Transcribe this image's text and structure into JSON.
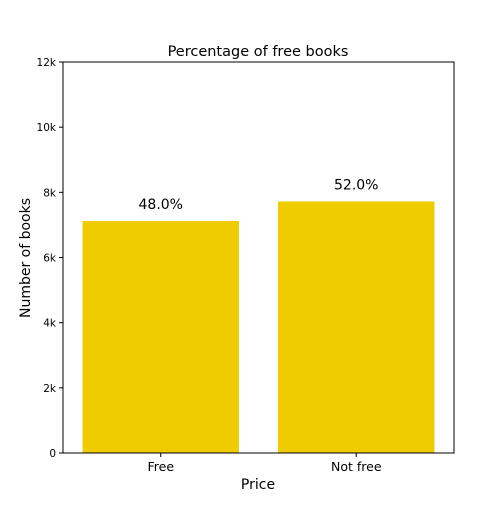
{
  "chart_data": {
    "type": "bar",
    "title": "Percentage of free books",
    "xlabel": "Price",
    "ylabel": "Number of books",
    "categories": [
      "Free",
      "Not free"
    ],
    "values": [
      7120,
      7720
    ],
    "data_labels": [
      "48.0%",
      "52.0%"
    ],
    "ylim": [
      0,
      12000
    ],
    "y_ticks": [
      0,
      2000,
      4000,
      6000,
      8000,
      10000,
      12000
    ],
    "y_tick_labels": [
      "0",
      "2k",
      "4k",
      "6k",
      "8k",
      "10k",
      "12k"
    ],
    "bar_color": "#eecc00",
    "grid": false,
    "legend": "none"
  }
}
